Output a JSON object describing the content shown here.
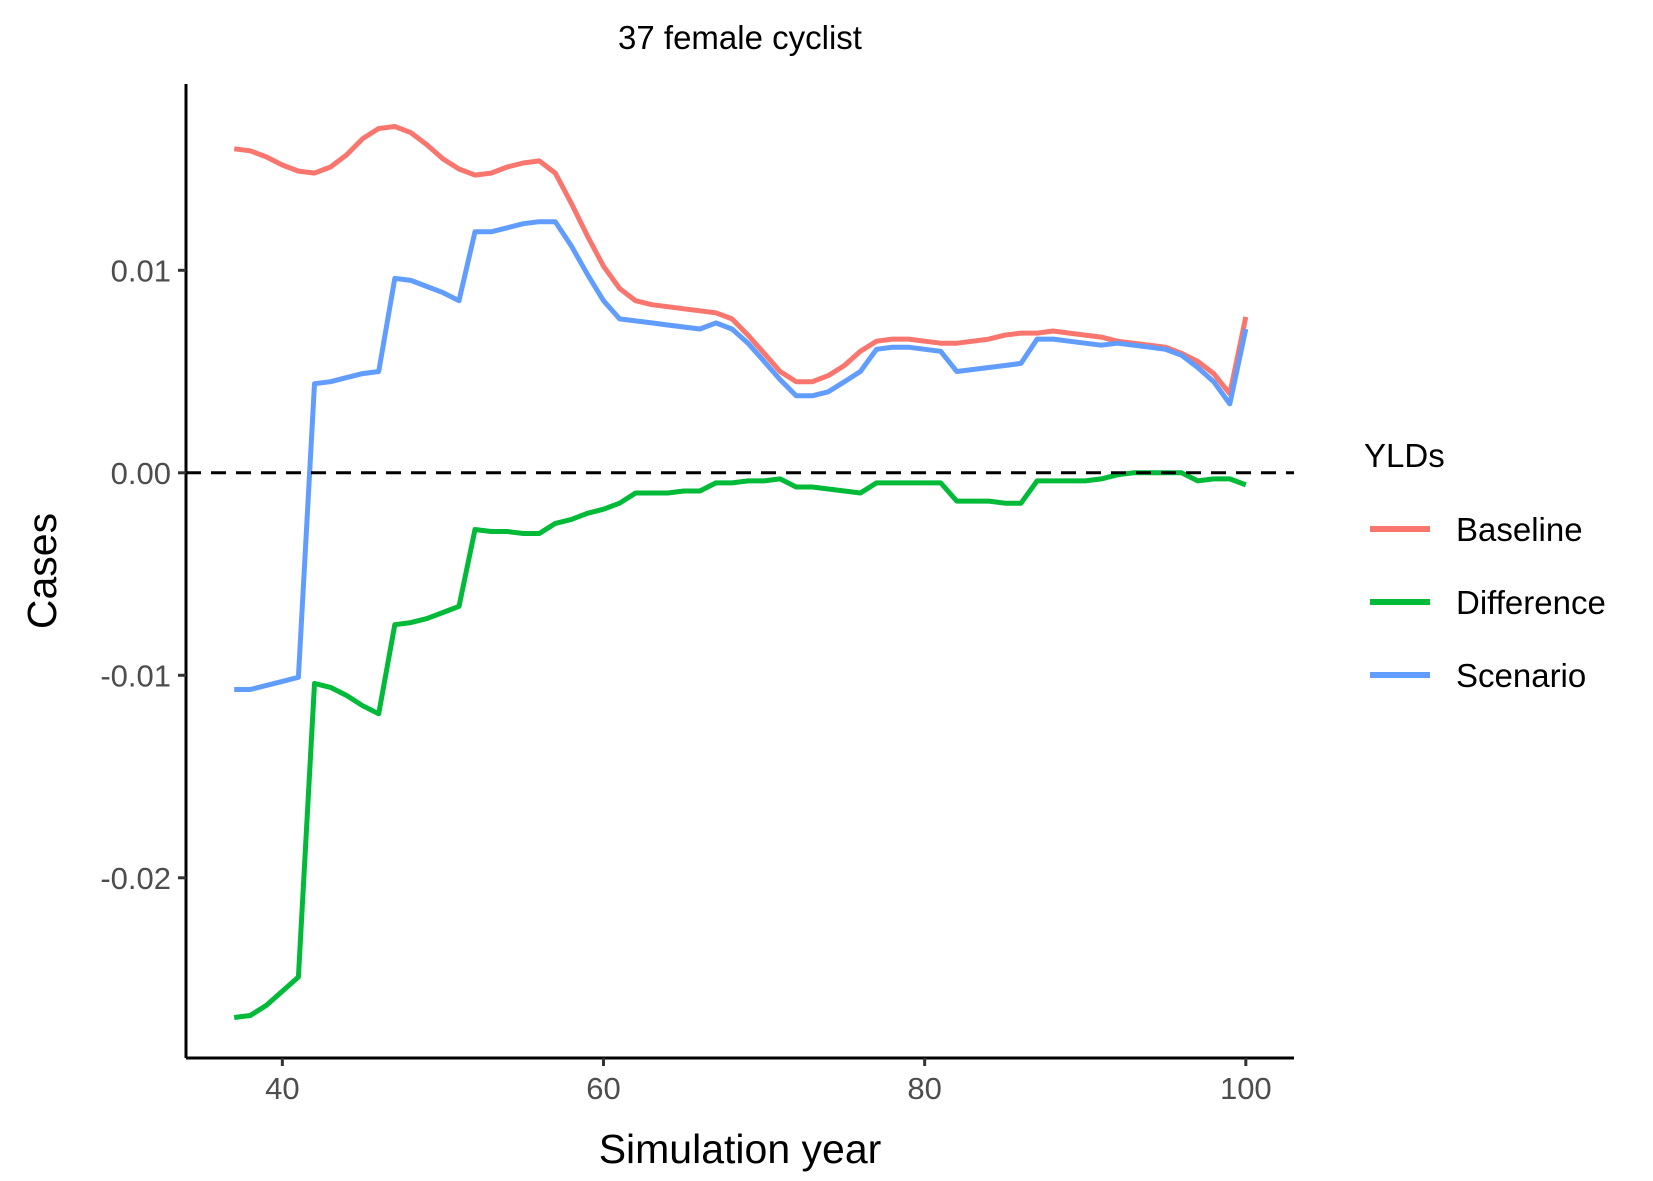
{
  "chart_data": {
    "type": "line",
    "title": "37 female cyclist",
    "xlabel": "Simulation year",
    "ylabel": "Cases",
    "xlim": [
      34,
      103
    ],
    "ylim": [
      -0.0289,
      0.0192
    ],
    "x_ticks": [
      40,
      60,
      80,
      100
    ],
    "x_tick_labels": [
      "40",
      "60",
      "80",
      "100"
    ],
    "y_ticks": [
      -0.02,
      -0.01,
      0.0,
      0.01
    ],
    "y_tick_labels": [
      "-0.02",
      "-0.01",
      "0.00",
      "0.01"
    ],
    "reference_line": {
      "y": 0,
      "style": "dashed",
      "color": "#000000"
    },
    "grid": false,
    "legend": {
      "title": "YLDs",
      "position": "right"
    },
    "series": [
      {
        "name": "Baseline",
        "color": "#F8766D",
        "points": [
          [
            37,
            0.016
          ],
          [
            38,
            0.0159
          ],
          [
            39,
            0.0156
          ],
          [
            40,
            0.0152
          ],
          [
            41,
            0.0149
          ],
          [
            42,
            0.0148
          ],
          [
            43,
            0.0151
          ],
          [
            44,
            0.0157
          ],
          [
            45,
            0.0165
          ],
          [
            46,
            0.017
          ],
          [
            47,
            0.0171
          ],
          [
            48,
            0.0168
          ],
          [
            49,
            0.0162
          ],
          [
            50,
            0.0155
          ],
          [
            51,
            0.015
          ],
          [
            52,
            0.0147
          ],
          [
            53,
            0.0148
          ],
          [
            54,
            0.0151
          ],
          [
            55,
            0.0153
          ],
          [
            56,
            0.0154
          ],
          [
            57,
            0.0148
          ],
          [
            58,
            0.0133
          ],
          [
            59,
            0.0117
          ],
          [
            60,
            0.0102
          ],
          [
            61,
            0.0091
          ],
          [
            62,
            0.0085
          ],
          [
            63,
            0.0083
          ],
          [
            64,
            0.0082
          ],
          [
            65,
            0.0081
          ],
          [
            66,
            0.008
          ],
          [
            67,
            0.0079
          ],
          [
            68,
            0.0076
          ],
          [
            69,
            0.0068
          ],
          [
            70,
            0.0059
          ],
          [
            71,
            0.005
          ],
          [
            72,
            0.0045
          ],
          [
            73,
            0.0045
          ],
          [
            74,
            0.0048
          ],
          [
            75,
            0.0053
          ],
          [
            76,
            0.006
          ],
          [
            77,
            0.0065
          ],
          [
            78,
            0.0066
          ],
          [
            79,
            0.0066
          ],
          [
            80,
            0.0065
          ],
          [
            81,
            0.0064
          ],
          [
            82,
            0.0064
          ],
          [
            83,
            0.0065
          ],
          [
            84,
            0.0066
          ],
          [
            85,
            0.0068
          ],
          [
            86,
            0.0069
          ],
          [
            87,
            0.0069
          ],
          [
            88,
            0.007
          ],
          [
            89,
            0.0069
          ],
          [
            90,
            0.0068
          ],
          [
            91,
            0.0067
          ],
          [
            92,
            0.0065
          ],
          [
            93,
            0.0064
          ],
          [
            94,
            0.0063
          ],
          [
            95,
            0.0062
          ],
          [
            96,
            0.0059
          ],
          [
            97,
            0.0055
          ],
          [
            98,
            0.0049
          ],
          [
            99,
            0.0039
          ],
          [
            100,
            0.0077
          ]
        ]
      },
      {
        "name": "Difference",
        "color": "#00BA38",
        "points": [
          [
            37,
            -0.0269
          ],
          [
            38,
            -0.0268
          ],
          [
            39,
            -0.0263
          ],
          [
            40,
            -0.0256
          ],
          [
            41,
            -0.0249
          ],
          [
            42,
            -0.0104
          ],
          [
            43,
            -0.0106
          ],
          [
            44,
            -0.011
          ],
          [
            45,
            -0.0115
          ],
          [
            46,
            -0.0119
          ],
          [
            47,
            -0.0075
          ],
          [
            48,
            -0.0074
          ],
          [
            49,
            -0.0072
          ],
          [
            50,
            -0.0069
          ],
          [
            51,
            -0.0066
          ],
          [
            52,
            -0.0028
          ],
          [
            53,
            -0.0029
          ],
          [
            54,
            -0.0029
          ],
          [
            55,
            -0.003
          ],
          [
            56,
            -0.003
          ],
          [
            57,
            -0.0025
          ],
          [
            58,
            -0.0023
          ],
          [
            59,
            -0.002
          ],
          [
            60,
            -0.0018
          ],
          [
            61,
            -0.0015
          ],
          [
            62,
            -0.001
          ],
          [
            63,
            -0.001
          ],
          [
            64,
            -0.001
          ],
          [
            65,
            -0.0009
          ],
          [
            66,
            -0.0009
          ],
          [
            67,
            -0.0005
          ],
          [
            68,
            -0.0005
          ],
          [
            69,
            -0.0004
          ],
          [
            70,
            -0.0004
          ],
          [
            71,
            -0.0003
          ],
          [
            72,
            -0.0007
          ],
          [
            73,
            -0.0007
          ],
          [
            74,
            -0.0008
          ],
          [
            75,
            -0.0009
          ],
          [
            76,
            -0.001
          ],
          [
            77,
            -0.0005
          ],
          [
            78,
            -0.0005
          ],
          [
            79,
            -0.0005
          ],
          [
            80,
            -0.0005
          ],
          [
            81,
            -0.0005
          ],
          [
            82,
            -0.0014
          ],
          [
            83,
            -0.0014
          ],
          [
            84,
            -0.0014
          ],
          [
            85,
            -0.0015
          ],
          [
            86,
            -0.0015
          ],
          [
            87,
            -0.0004
          ],
          [
            88,
            -0.0004
          ],
          [
            89,
            -0.0004
          ],
          [
            90,
            -0.0004
          ],
          [
            91,
            -0.0003
          ],
          [
            92,
            -0.0001
          ],
          [
            93,
            0.0
          ],
          [
            94,
            0.0
          ],
          [
            95,
            0.0
          ],
          [
            96,
            0.0
          ],
          [
            97,
            -0.0004
          ],
          [
            98,
            -0.0003
          ],
          [
            99,
            -0.0003
          ],
          [
            100,
            -0.0006
          ]
        ]
      },
      {
        "name": "Scenario",
        "color": "#619CFF",
        "points": [
          [
            37,
            -0.0107
          ],
          [
            38,
            -0.0107
          ],
          [
            39,
            -0.0105
          ],
          [
            40,
            -0.0103
          ],
          [
            41,
            -0.0101
          ],
          [
            42,
            0.0044
          ],
          [
            43,
            0.0045
          ],
          [
            44,
            0.0047
          ],
          [
            45,
            0.0049
          ],
          [
            46,
            0.005
          ],
          [
            47,
            0.0096
          ],
          [
            48,
            0.0095
          ],
          [
            49,
            0.0092
          ],
          [
            50,
            0.0089
          ],
          [
            51,
            0.0085
          ],
          [
            52,
            0.0119
          ],
          [
            53,
            0.0119
          ],
          [
            54,
            0.0121
          ],
          [
            55,
            0.0123
          ],
          [
            56,
            0.0124
          ],
          [
            57,
            0.0124
          ],
          [
            58,
            0.0112
          ],
          [
            59,
            0.0098
          ],
          [
            60,
            0.0085
          ],
          [
            61,
            0.0076
          ],
          [
            62,
            0.0075
          ],
          [
            63,
            0.0074
          ],
          [
            64,
            0.0073
          ],
          [
            65,
            0.0072
          ],
          [
            66,
            0.0071
          ],
          [
            67,
            0.0074
          ],
          [
            68,
            0.0071
          ],
          [
            69,
            0.0064
          ],
          [
            70,
            0.0055
          ],
          [
            71,
            0.0046
          ],
          [
            72,
            0.0038
          ],
          [
            73,
            0.0038
          ],
          [
            74,
            0.004
          ],
          [
            75,
            0.0045
          ],
          [
            76,
            0.005
          ],
          [
            77,
            0.0061
          ],
          [
            78,
            0.0062
          ],
          [
            79,
            0.0062
          ],
          [
            80,
            0.0061
          ],
          [
            81,
            0.006
          ],
          [
            82,
            0.005
          ],
          [
            83,
            0.0051
          ],
          [
            84,
            0.0052
          ],
          [
            85,
            0.0053
          ],
          [
            86,
            0.0054
          ],
          [
            87,
            0.0066
          ],
          [
            88,
            0.0066
          ],
          [
            89,
            0.0065
          ],
          [
            90,
            0.0064
          ],
          [
            91,
            0.0063
          ],
          [
            92,
            0.0064
          ],
          [
            93,
            0.0063
          ],
          [
            94,
            0.0062
          ],
          [
            95,
            0.0061
          ],
          [
            96,
            0.0058
          ],
          [
            97,
            0.0052
          ],
          [
            98,
            0.0045
          ],
          [
            99,
            0.0034
          ],
          [
            100,
            0.0071
          ]
        ]
      }
    ]
  }
}
